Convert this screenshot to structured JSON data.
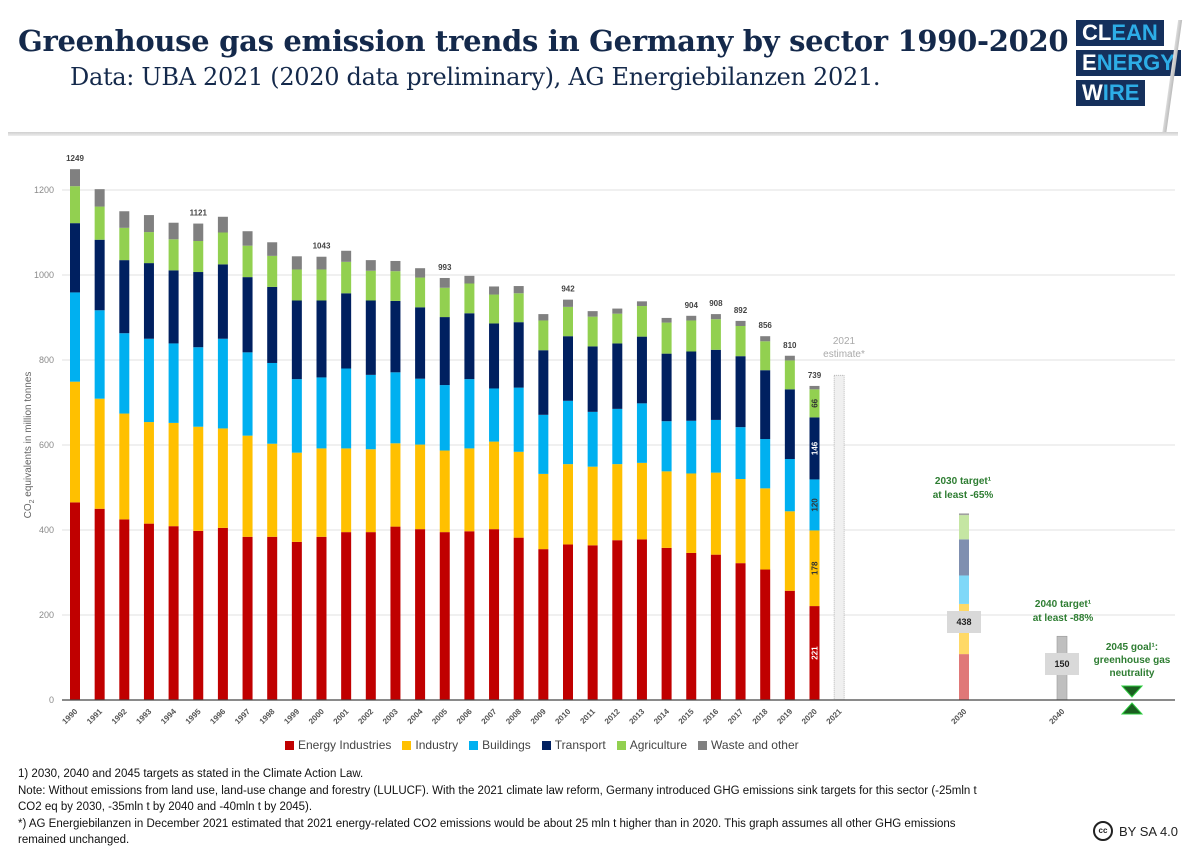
{
  "header": {
    "title": "Greenhouse gas emission trends in Germany by sector 1990-2020",
    "subtitle": "Data: UBA 2021 (2020 data preliminary), AG Energiebilanzen 2021.",
    "logo": [
      {
        "white": "C",
        "rest": "LEAN",
        "whiteLen": 2,
        "text": "CLEAN"
      },
      {
        "white": "E",
        "rest": "NERGY",
        "text": "ENERGY"
      },
      {
        "white": "W",
        "rest": "IRE",
        "text": "WIRE"
      }
    ]
  },
  "chart_data": {
    "type": "bar",
    "stacked": true,
    "title": "Greenhouse gas emission trends in Germany by sector 1990-2020",
    "ylabel": "CO2 equivalents in million tonnes",
    "ylabel_main": "CO",
    "ylabel_sub": "2",
    "ylabel_rest": " equivalents in million tonnes",
    "ylim": [
      0,
      1250
    ],
    "yticks": [
      0,
      200,
      400,
      600,
      800,
      1000,
      1200
    ],
    "grid": true,
    "legend_position": "bottom",
    "categories": [
      "1990",
      "1991",
      "1992",
      "1993",
      "1994",
      "1995",
      "1996",
      "1997",
      "1998",
      "1999",
      "2000",
      "2001",
      "2002",
      "2003",
      "2004",
      "2005",
      "2006",
      "2007",
      "2008",
      "2009",
      "2010",
      "2011",
      "2012",
      "2013",
      "2014",
      "2015",
      "2016",
      "2017",
      "2018",
      "2019",
      "2020"
    ],
    "series": [
      {
        "name": "Energy Industries",
        "color": "#c00000",
        "values": [
          465,
          450,
          425,
          415,
          409,
          398,
          405,
          384,
          384,
          372,
          384,
          395,
          395,
          408,
          402,
          395,
          397,
          402,
          382,
          355,
          366,
          364,
          376,
          378,
          358,
          346,
          342,
          322,
          307,
          257,
          221
        ]
      },
      {
        "name": "Industry",
        "color": "#ffc000",
        "values": [
          284,
          259,
          249,
          239,
          243,
          245,
          234,
          238,
          219,
          210,
          208,
          197,
          195,
          196,
          199,
          192,
          195,
          206,
          202,
          177,
          189,
          185,
          179,
          180,
          180,
          187,
          193,
          198,
          191,
          187,
          178
        ]
      },
      {
        "name": "Buildings",
        "color": "#00b0f0",
        "values": [
          210,
          208,
          189,
          196,
          187,
          187,
          211,
          196,
          190,
          173,
          167,
          188,
          175,
          167,
          155,
          154,
          163,
          125,
          151,
          139,
          149,
          129,
          130,
          140,
          118,
          124,
          124,
          122,
          116,
          123,
          120
        ]
      },
      {
        "name": "Transport",
        "color": "#002060",
        "values": [
          163,
          166,
          172,
          178,
          172,
          177,
          175,
          177,
          179,
          185,
          181,
          177,
          175,
          168,
          168,
          160,
          155,
          153,
          154,
          152,
          152,
          154,
          154,
          157,
          159,
          163,
          165,
          167,
          162,
          164,
          146
        ]
      },
      {
        "name": "Agriculture",
        "color": "#92d050",
        "values": [
          87,
          78,
          76,
          73,
          73,
          73,
          75,
          74,
          73,
          73,
          73,
          74,
          70,
          70,
          70,
          69,
          70,
          68,
          68,
          70,
          69,
          70,
          70,
          72,
          73,
          73,
          72,
          71,
          68,
          68,
          66
        ]
      },
      {
        "name": "Waste and other",
        "color": "#808080",
        "values": [
          40,
          41,
          39,
          40,
          39,
          41,
          37,
          34,
          32,
          31,
          30,
          26,
          25,
          24,
          22,
          23,
          18,
          19,
          17,
          15,
          17,
          13,
          12,
          11,
          11,
          11,
          12,
          12,
          12,
          11,
          8
        ]
      }
    ],
    "totals_labeled": {
      "1990": 1249,
      "1995": 1121,
      "2000": 1043,
      "2005": 993,
      "2010": 942,
      "2015": 904,
      "2016": 908,
      "2017": 892,
      "2018": 856,
      "2019": 810,
      "2020": 739
    },
    "segment_labels_2020": {
      "Energy Industries": "221",
      "Industry": "178",
      "Buildings": "120",
      "Transport": "146",
      "Agriculture": "66"
    },
    "estimate_2021": {
      "label": "2021",
      "note": "estimate*",
      "value": 764
    },
    "targets": [
      {
        "year": "2030",
        "value": 438,
        "label": "438",
        "title": "2030 target¹",
        "subtitle": "at least -65%",
        "segments": [
          {
            "name": "Energy Industries",
            "value": 108,
            "color": "#e07878"
          },
          {
            "name": "Industry",
            "value": 118,
            "color": "#ffd966"
          },
          {
            "name": "Buildings",
            "value": 67,
            "color": "#7fd8f8"
          },
          {
            "name": "Transport",
            "value": 85,
            "color": "#7f8fb0"
          },
          {
            "name": "Agriculture",
            "value": 57,
            "color": "#c5e6a3"
          },
          {
            "name": "Waste and other",
            "value": 4,
            "color": "#a0a0a0"
          }
        ]
      },
      {
        "year": "2040",
        "value": 150,
        "label": "150",
        "title": "2040 target¹",
        "subtitle": "at least -88%"
      },
      {
        "year": "2045",
        "value": 0,
        "title": "2045 goal¹:",
        "line2": "greenhouse gas",
        "line3": "neutrality"
      }
    ]
  },
  "legend": [
    {
      "label": "Energy Industries",
      "color": "#c00000"
    },
    {
      "label": "Industry",
      "color": "#ffc000"
    },
    {
      "label": "Buildings",
      "color": "#00b0f0"
    },
    {
      "label": "Transport",
      "color": "#002060"
    },
    {
      "label": "Agriculture",
      "color": "#92d050"
    },
    {
      "label": "Waste and other",
      "color": "#808080"
    }
  ],
  "notes": [
    "1) 2030, 2040 and 2045 targets as stated in the Climate Action Law.",
    "Note: Without emissions from land use, land-use change and forestry (LULUCF). With the 2021 climate law reform, Germany introduced GHG emissions sink targets for this sector (-25mln t",
    "CO2 eq by 2030, -35mln t by 2040 and -40mln t by 2045).",
    "*) AG Energiebilanzen in December 2021 estimated that 2021 energy-related CO2 emissions would be about 25 mln t higher than in 2020. This graph assumes all other GHG emissions",
    "remained unchanged."
  ],
  "license": {
    "icon": "cc",
    "text": "BY SA 4.0"
  }
}
